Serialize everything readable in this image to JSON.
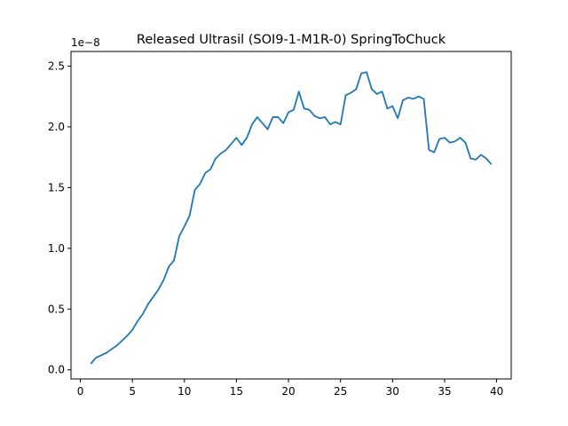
{
  "chart_data": {
    "type": "line",
    "title": "Released Ultrasil (SOI9-1-M1R-0) SpringToChuck",
    "xlabel": "",
    "ylabel": "",
    "offset_label": "1e−8",
    "xlim": [
      -0.9,
      41.4
    ],
    "ylim": [
      -0.075,
      2.62
    ],
    "xticks": [
      0,
      5,
      10,
      15,
      20,
      25,
      30,
      35,
      40
    ],
    "xtick_labels": [
      "0",
      "5",
      "10",
      "15",
      "20",
      "25",
      "30",
      "35",
      "40"
    ],
    "yticks": [
      0.0,
      0.5,
      1.0,
      1.5,
      2.0,
      2.5
    ],
    "ytick_labels": [
      "0.0",
      "0.5",
      "1.0",
      "1.5",
      "2.0",
      "2.5"
    ],
    "grid": false,
    "legend": "none",
    "series": [
      {
        "color": "#1f77b4",
        "x": [
          1.0,
          1.5,
          2.0,
          2.5,
          3.0,
          3.5,
          4.0,
          4.5,
          5.0,
          5.5,
          6.0,
          6.5,
          7.0,
          7.5,
          8.0,
          8.5,
          9.0,
          9.5,
          10.0,
          10.5,
          11.0,
          11.5,
          12.0,
          12.5,
          13.0,
          13.5,
          14.0,
          14.5,
          15.0,
          15.5,
          16.0,
          16.5,
          17.0,
          17.5,
          18.0,
          18.5,
          19.0,
          19.5,
          20.0,
          20.5,
          21.0,
          21.5,
          22.0,
          22.5,
          23.0,
          23.5,
          24.0,
          24.5,
          25.0,
          25.5,
          26.0,
          26.5,
          27.0,
          27.5,
          28.0,
          28.5,
          29.0,
          29.5,
          30.0,
          30.5,
          31.0,
          31.5,
          32.0,
          32.5,
          33.0,
          33.5,
          34.0,
          34.5,
          35.0,
          35.5,
          36.0,
          36.5,
          37.0,
          37.5,
          38.0,
          38.5,
          39.0,
          39.5
        ],
        "values": [
          0.05,
          0.1,
          0.12,
          0.14,
          0.17,
          0.2,
          0.24,
          0.28,
          0.33,
          0.4,
          0.46,
          0.54,
          0.6,
          0.66,
          0.74,
          0.85,
          0.9,
          1.1,
          1.18,
          1.27,
          1.48,
          1.53,
          1.62,
          1.65,
          1.74,
          1.78,
          1.81,
          1.86,
          1.91,
          1.85,
          1.91,
          2.02,
          2.08,
          2.03,
          1.98,
          2.08,
          2.08,
          2.03,
          2.12,
          2.14,
          2.29,
          2.15,
          2.14,
          2.09,
          2.07,
          2.08,
          2.02,
          2.04,
          2.02,
          2.26,
          2.28,
          2.31,
          2.44,
          2.45,
          2.31,
          2.27,
          2.29,
          2.15,
          2.17,
          2.07,
          2.22,
          2.24,
          2.23,
          2.25,
          2.23,
          1.81,
          1.79,
          1.9,
          1.91,
          1.87,
          1.88,
          1.91,
          1.87,
          1.74,
          1.73,
          1.77,
          1.74,
          1.69
        ]
      }
    ]
  }
}
